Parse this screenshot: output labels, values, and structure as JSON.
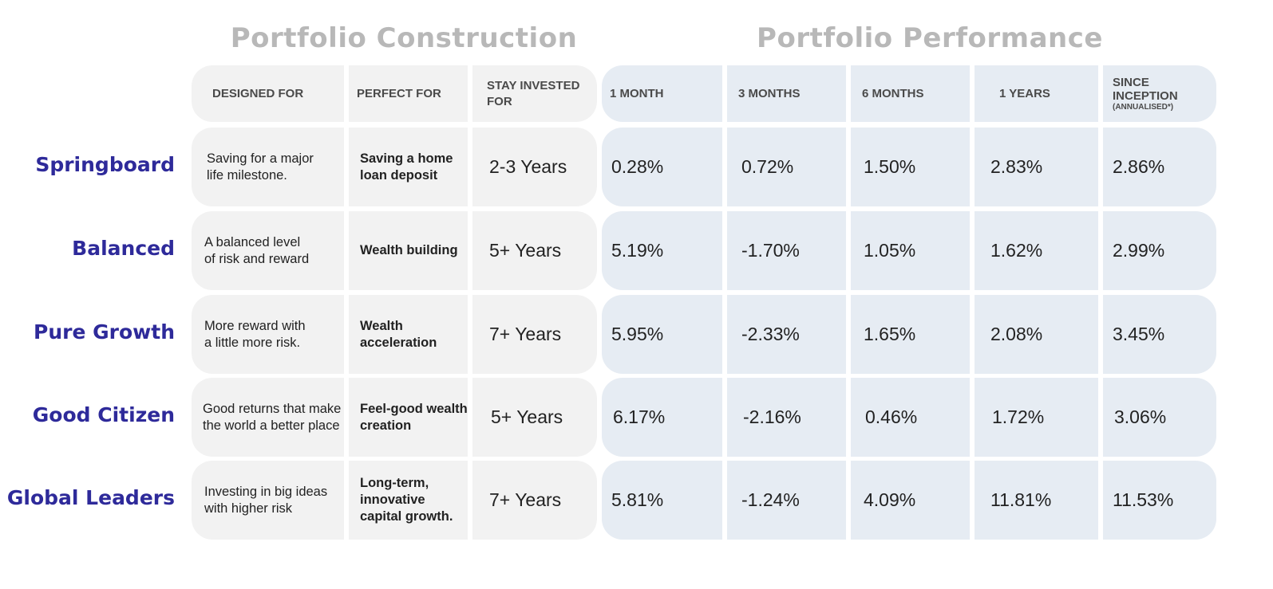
{
  "sections": {
    "construction_title": "Portfolio Construction",
    "performance_title": "Portfolio Performance"
  },
  "headers": {
    "designed_for": "DESIGNED FOR",
    "perfect_for": "PERFECT FOR",
    "stay_invested_line1": "STAY INVESTED",
    "stay_invested_line2": "FOR",
    "m1": "1 MONTH",
    "m3": "3 MONTHS",
    "m6": "6 MONTHS",
    "y1": "1 YEARS",
    "since_line1": "SINCE",
    "since_line2": "INCEPTION",
    "since_note": "(ANNUALISED*)"
  },
  "portfolios": [
    {
      "name": "Springboard",
      "designed_for": [
        "Saving for a major",
        "life milestone."
      ],
      "perfect_for": [
        "Saving a home",
        "loan deposit"
      ],
      "stay": "2-3 Years",
      "returns": [
        "0.28%",
        "0.72%",
        "1.50%",
        "2.83%",
        "2.86%"
      ]
    },
    {
      "name": "Balanced",
      "designed_for": [
        "A balanced level",
        "of risk and reward"
      ],
      "perfect_for": [
        "Wealth building"
      ],
      "stay": "5+ Years",
      "returns": [
        "5.19%",
        "-1.70%",
        "1.05%",
        "1.62%",
        "2.99%"
      ]
    },
    {
      "name": "Pure Growth",
      "designed_for": [
        "More reward with",
        "a little more risk."
      ],
      "perfect_for": [
        "Wealth",
        "acceleration"
      ],
      "stay": "7+ Years",
      "returns": [
        "5.95%",
        "-2.33%",
        "1.65%",
        "2.08%",
        "3.45%"
      ]
    },
    {
      "name": "Good Citizen",
      "designed_for": [
        "Good returns that make",
        "the world a better place"
      ],
      "perfect_for": [
        "Feel-good wealth",
        "creation"
      ],
      "stay": "5+ Years",
      "returns": [
        "6.17%",
        "-2.16%",
        "0.46%",
        "1.72%",
        "3.06%"
      ]
    },
    {
      "name": "Global Leaders",
      "designed_for": [
        "Investing in big ideas",
        "with higher risk"
      ],
      "perfect_for": [
        "Long-term,",
        "innovative",
        "capital growth."
      ],
      "stay": "7+ Years",
      "returns": [
        "5.81%",
        "-1.24%",
        "4.09%",
        "11.81%",
        "11.53%"
      ]
    }
  ]
}
